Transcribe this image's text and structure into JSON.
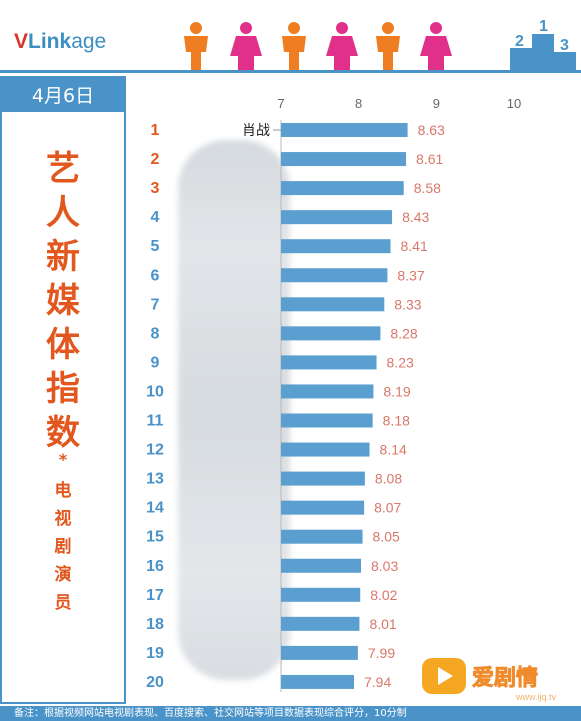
{
  "logo": {
    "v": "V",
    "link": "Link",
    "age": "age"
  },
  "date": "4月6日",
  "side_title": {
    "big_chars": [
      "艺",
      "人",
      "新",
      "媒",
      "体",
      "指",
      "数"
    ],
    "star": "*",
    "small_chars": [
      "电",
      "视",
      "剧",
      "演",
      "员"
    ]
  },
  "footer": "备注：根据视频网站电视剧表现、百度搜索、社交网站等项目数据表现综合评分，10分制",
  "watermark": {
    "text": "爱剧情",
    "url": "www.ijq.tv"
  },
  "colors": {
    "accent": "#4a93c8",
    "title": "#e2571e",
    "rank_top": "#e2571e",
    "bar": "#5a9fd0",
    "value": "#d9776a"
  },
  "chart_data": {
    "type": "bar",
    "orientation": "horizontal",
    "categories": [
      "1",
      "2",
      "3",
      "4",
      "5",
      "6",
      "7",
      "8",
      "9",
      "10",
      "11",
      "12",
      "13",
      "14",
      "15",
      "16",
      "17",
      "18",
      "19",
      "20"
    ],
    "names": [
      "肖战",
      "",
      "",
      "",
      "",
      "",
      "",
      "",
      "",
      "",
      "",
      "",
      "",
      "",
      "",
      "",
      "",
      "",
      "",
      ""
    ],
    "values": [
      8.63,
      8.61,
      8.58,
      8.43,
      8.41,
      8.37,
      8.33,
      8.28,
      8.23,
      8.19,
      8.18,
      8.14,
      8.08,
      8.07,
      8.05,
      8.03,
      8.02,
      8.01,
      7.99,
      7.94
    ],
    "value_labels": [
      "8.63",
      "8.61",
      "8.58",
      "8.43",
      "8.41",
      "8.37",
      "8.33",
      "8.28",
      "8.23",
      "8.19",
      "8.18",
      "8.14",
      "8.08",
      "8.07",
      "8.05",
      "8.03",
      "8.02",
      "8.01",
      "7.99",
      "7.94"
    ],
    "xlim": [
      7,
      10
    ],
    "x_ticks": [
      "7",
      "8",
      "9",
      "10"
    ],
    "title": "",
    "xlabel": "",
    "ylabel": "",
    "grid": false
  }
}
